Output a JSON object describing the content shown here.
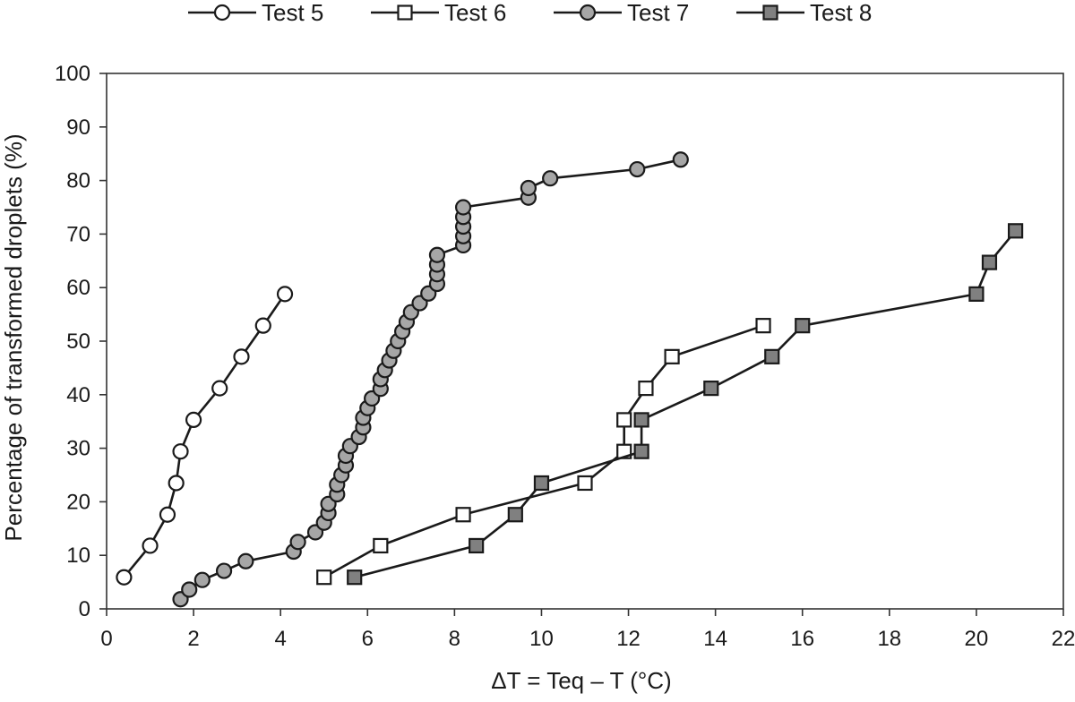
{
  "chart_data": {
    "type": "scatter",
    "xlabel": "ΔT = Teq – T (°C)",
    "ylabel": "Percentage of transformed droplets (%)",
    "xlim": [
      0,
      22
    ],
    "ylim": [
      0,
      100
    ],
    "xticks": [
      0,
      2,
      4,
      6,
      8,
      10,
      12,
      14,
      16,
      18,
      20,
      22
    ],
    "yticks": [
      0,
      10,
      20,
      30,
      40,
      50,
      60,
      70,
      80,
      90,
      100
    ],
    "grid": false,
    "legend_position": "top",
    "series": [
      {
        "name": "Test 5",
        "marker": "circle",
        "fill": "#ffffff",
        "points": [
          [
            0.4,
            5.9
          ],
          [
            1.0,
            11.8
          ],
          [
            1.4,
            17.6
          ],
          [
            1.6,
            23.5
          ],
          [
            1.7,
            29.4
          ],
          [
            2.0,
            35.3
          ],
          [
            2.6,
            41.2
          ],
          [
            3.1,
            47.1
          ],
          [
            3.6,
            52.9
          ],
          [
            4.1,
            58.8
          ]
        ]
      },
      {
        "name": "Test 6",
        "marker": "square",
        "fill": "#ffffff",
        "points": [
          [
            5.0,
            5.9
          ],
          [
            6.3,
            11.8
          ],
          [
            8.2,
            17.6
          ],
          [
            11.0,
            23.5
          ],
          [
            11.9,
            29.4
          ],
          [
            11.9,
            35.3
          ],
          [
            12.4,
            41.2
          ],
          [
            13.0,
            47.1
          ],
          [
            15.1,
            52.9
          ]
        ]
      },
      {
        "name": "Test 7",
        "marker": "circle",
        "fill": "#a6a6a6",
        "points": [
          [
            1.7,
            1.8
          ],
          [
            1.9,
            3.6
          ],
          [
            2.2,
            5.4
          ],
          [
            2.7,
            7.1
          ],
          [
            3.2,
            8.9
          ],
          [
            4.3,
            10.7
          ],
          [
            4.4,
            12.5
          ],
          [
            4.8,
            14.3
          ],
          [
            5.0,
            16.1
          ],
          [
            5.1,
            17.9
          ],
          [
            5.1,
            19.6
          ],
          [
            5.3,
            21.4
          ],
          [
            5.3,
            23.2
          ],
          [
            5.4,
            25.0
          ],
          [
            5.5,
            26.8
          ],
          [
            5.5,
            28.6
          ],
          [
            5.6,
            30.4
          ],
          [
            5.8,
            32.1
          ],
          [
            5.9,
            33.9
          ],
          [
            5.9,
            35.7
          ],
          [
            6.0,
            37.5
          ],
          [
            6.1,
            39.3
          ],
          [
            6.3,
            41.1
          ],
          [
            6.3,
            42.9
          ],
          [
            6.4,
            44.6
          ],
          [
            6.5,
            46.4
          ],
          [
            6.6,
            48.2
          ],
          [
            6.7,
            50.0
          ],
          [
            6.8,
            51.8
          ],
          [
            6.9,
            53.6
          ],
          [
            7.0,
            55.4
          ],
          [
            7.2,
            57.1
          ],
          [
            7.4,
            58.9
          ],
          [
            7.6,
            60.7
          ],
          [
            7.6,
            62.5
          ],
          [
            7.6,
            64.3
          ],
          [
            7.6,
            66.1
          ],
          [
            8.2,
            67.9
          ],
          [
            8.2,
            69.6
          ],
          [
            8.2,
            71.4
          ],
          [
            8.2,
            73.2
          ],
          [
            8.2,
            75.0
          ],
          [
            9.7,
            76.8
          ],
          [
            9.7,
            78.6
          ],
          [
            10.2,
            80.4
          ],
          [
            12.2,
            82.1
          ],
          [
            13.2,
            83.9
          ]
        ]
      },
      {
        "name": "Test 8",
        "marker": "square",
        "fill": "#808080",
        "points": [
          [
            5.7,
            5.9
          ],
          [
            8.5,
            11.8
          ],
          [
            9.4,
            17.6
          ],
          [
            10.0,
            23.5
          ],
          [
            12.3,
            29.4
          ],
          [
            12.3,
            35.3
          ],
          [
            13.9,
            41.2
          ],
          [
            15.3,
            47.1
          ],
          [
            16.0,
            52.9
          ],
          [
            20.0,
            58.8
          ],
          [
            20.3,
            64.7
          ],
          [
            20.9,
            70.6
          ]
        ]
      }
    ]
  }
}
